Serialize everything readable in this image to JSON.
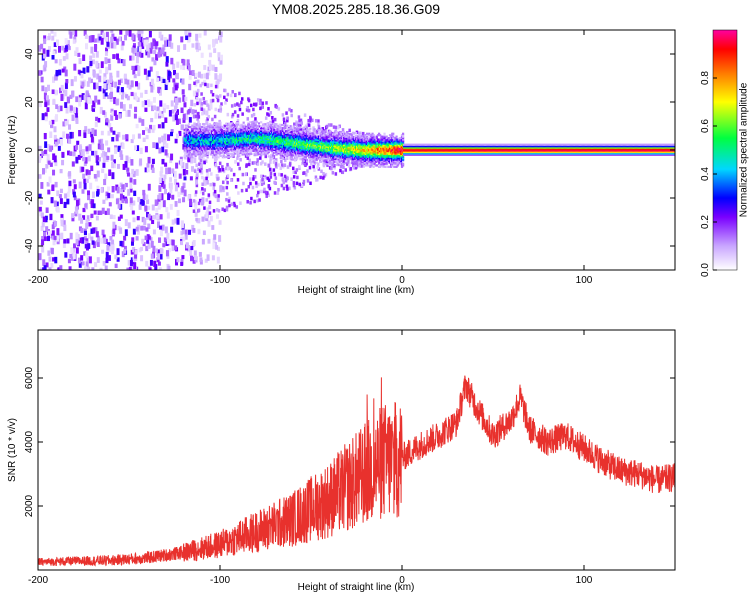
{
  "chart_data": [
    {
      "type": "heatmap",
      "title": "YM08.2025.285.18.36.G09",
      "xlabel": "Height of straight line (km)",
      "ylabel": "Frequency (Hz)",
      "xlim": [
        -200,
        150
      ],
      "ylim": [
        -50,
        50
      ],
      "xticks": [
        -200,
        -100,
        0,
        100
      ],
      "xtick_labels": [
        "-200",
        "-100",
        "0",
        "100"
      ],
      "yticks": [
        -40,
        -20,
        0,
        20,
        40
      ],
      "ytick_labels": [
        "-40",
        "-20",
        "0",
        "20",
        "40"
      ],
      "ridge": {
        "description_points_x": [
          -120,
          -100,
          -80,
          -60,
          -40,
          -20,
          0,
          50,
          100,
          150
        ],
        "frequency_hz": [
          4,
          4,
          5,
          3,
          1,
          0,
          0,
          0,
          0,
          0
        ],
        "peak_normalized_amplitude": [
          0.4,
          0.45,
          0.5,
          0.55,
          0.6,
          0.75,
          0.95,
          0.98,
          0.98,
          0.98
        ]
      },
      "noise_region_x": [
        -200,
        -115
      ],
      "colorbar": {
        "label": "Normalized spectral amplitude",
        "range": [
          0,
          1
        ],
        "ticks": [
          0.0,
          0.2,
          0.4,
          0.6,
          0.8
        ],
        "tick_labels": [
          "0.0",
          "0.2",
          "0.4",
          "0.6",
          "0.8"
        ]
      }
    },
    {
      "type": "line",
      "xlabel": "Height of straight line (km)",
      "ylabel": "SNR (10 * v/v)",
      "xlim": [
        -200,
        150
      ],
      "ylim": [
        0,
        7500
      ],
      "xticks": [
        -200,
        -100,
        0,
        100
      ],
      "xtick_labels": [
        "-200",
        "-100",
        "0",
        "100"
      ],
      "yticks": [
        2000,
        4000,
        6000
      ],
      "ytick_labels": [
        "2000",
        "4000",
        "6000"
      ],
      "series": [
        {
          "name": "SNR",
          "color": "#e8312d",
          "x": [
            -200,
            -180,
            -160,
            -140,
            -120,
            -100,
            -90,
            -80,
            -70,
            -60,
            -50,
            -40,
            -30,
            -20,
            -15,
            -10,
            -5,
            0,
            5,
            10,
            20,
            30,
            35,
            40,
            50,
            60,
            65,
            70,
            80,
            90,
            100,
            110,
            120,
            130,
            140,
            150
          ],
          "y": [
            250,
            280,
            300,
            380,
            550,
            800,
            1000,
            1200,
            1400,
            1600,
            1900,
            2200,
            2600,
            3000,
            3200,
            3400,
            3400,
            3500,
            3700,
            3900,
            4200,
            4600,
            5800,
            5200,
            4200,
            4700,
            5400,
            4400,
            4000,
            4200,
            3800,
            3400,
            3100,
            3000,
            2800,
            2900
          ]
        }
      ]
    }
  ]
}
